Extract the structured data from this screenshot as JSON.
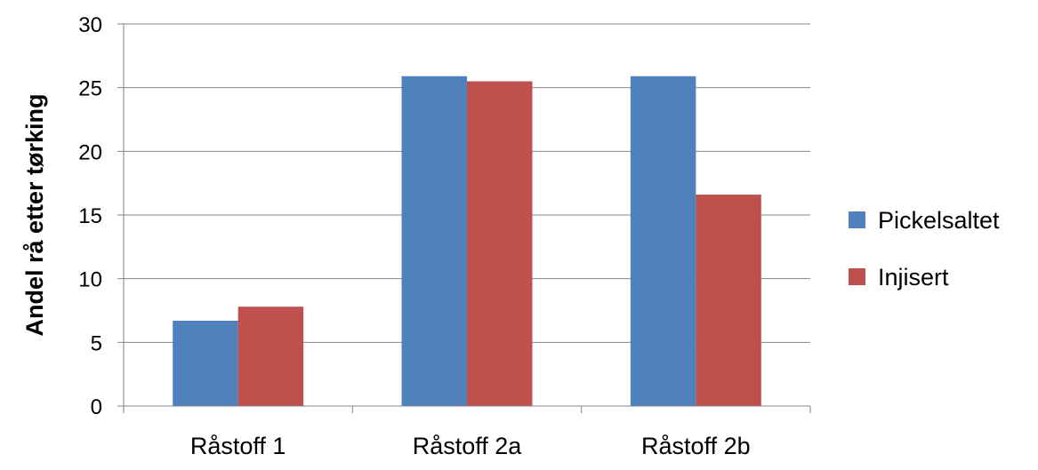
{
  "chart_data": {
    "type": "bar",
    "title": "",
    "xlabel": "",
    "ylabel": "Andel rå etter tørking",
    "ylim": [
      0,
      30
    ],
    "yticks": [
      0,
      5,
      10,
      15,
      20,
      25,
      30
    ],
    "grid": true,
    "legend_position": "right",
    "categories": [
      "Råstoff 1",
      "Råstoff 2a",
      "Råstoff 2b"
    ],
    "series": [
      {
        "name": "Pickelsaltet",
        "color": "#4f81bd",
        "values": [
          6.7,
          25.9,
          25.9
        ]
      },
      {
        "name": "Injisert",
        "color": "#c0504d",
        "values": [
          7.8,
          25.5,
          16.6
        ]
      }
    ]
  }
}
